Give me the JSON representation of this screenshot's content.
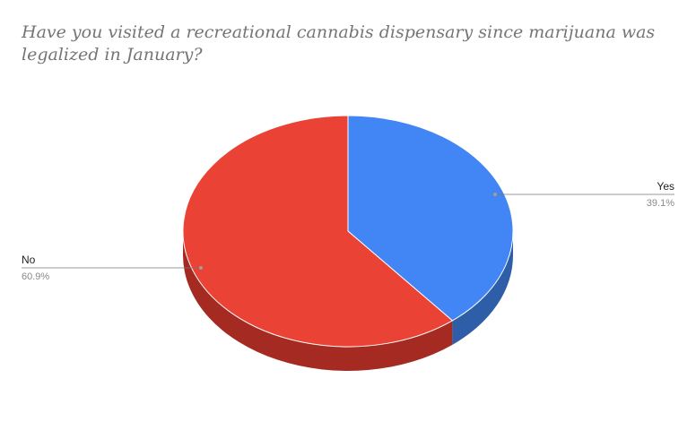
{
  "chart_data": {
    "type": "pie",
    "title": "Have you visited a recreational cannabis dispensary since marijuana was legalized in January?",
    "three_d": true,
    "legend": "labeled",
    "slices": [
      {
        "label": "Yes",
        "value": 39.1,
        "percent_label": "39.1%",
        "color": "#4285f4",
        "side_color": "#2f5ea8"
      },
      {
        "label": "No",
        "value": 60.9,
        "percent_label": "60.9%",
        "color": "#ea4335",
        "side_color": "#a52a21"
      }
    ]
  }
}
